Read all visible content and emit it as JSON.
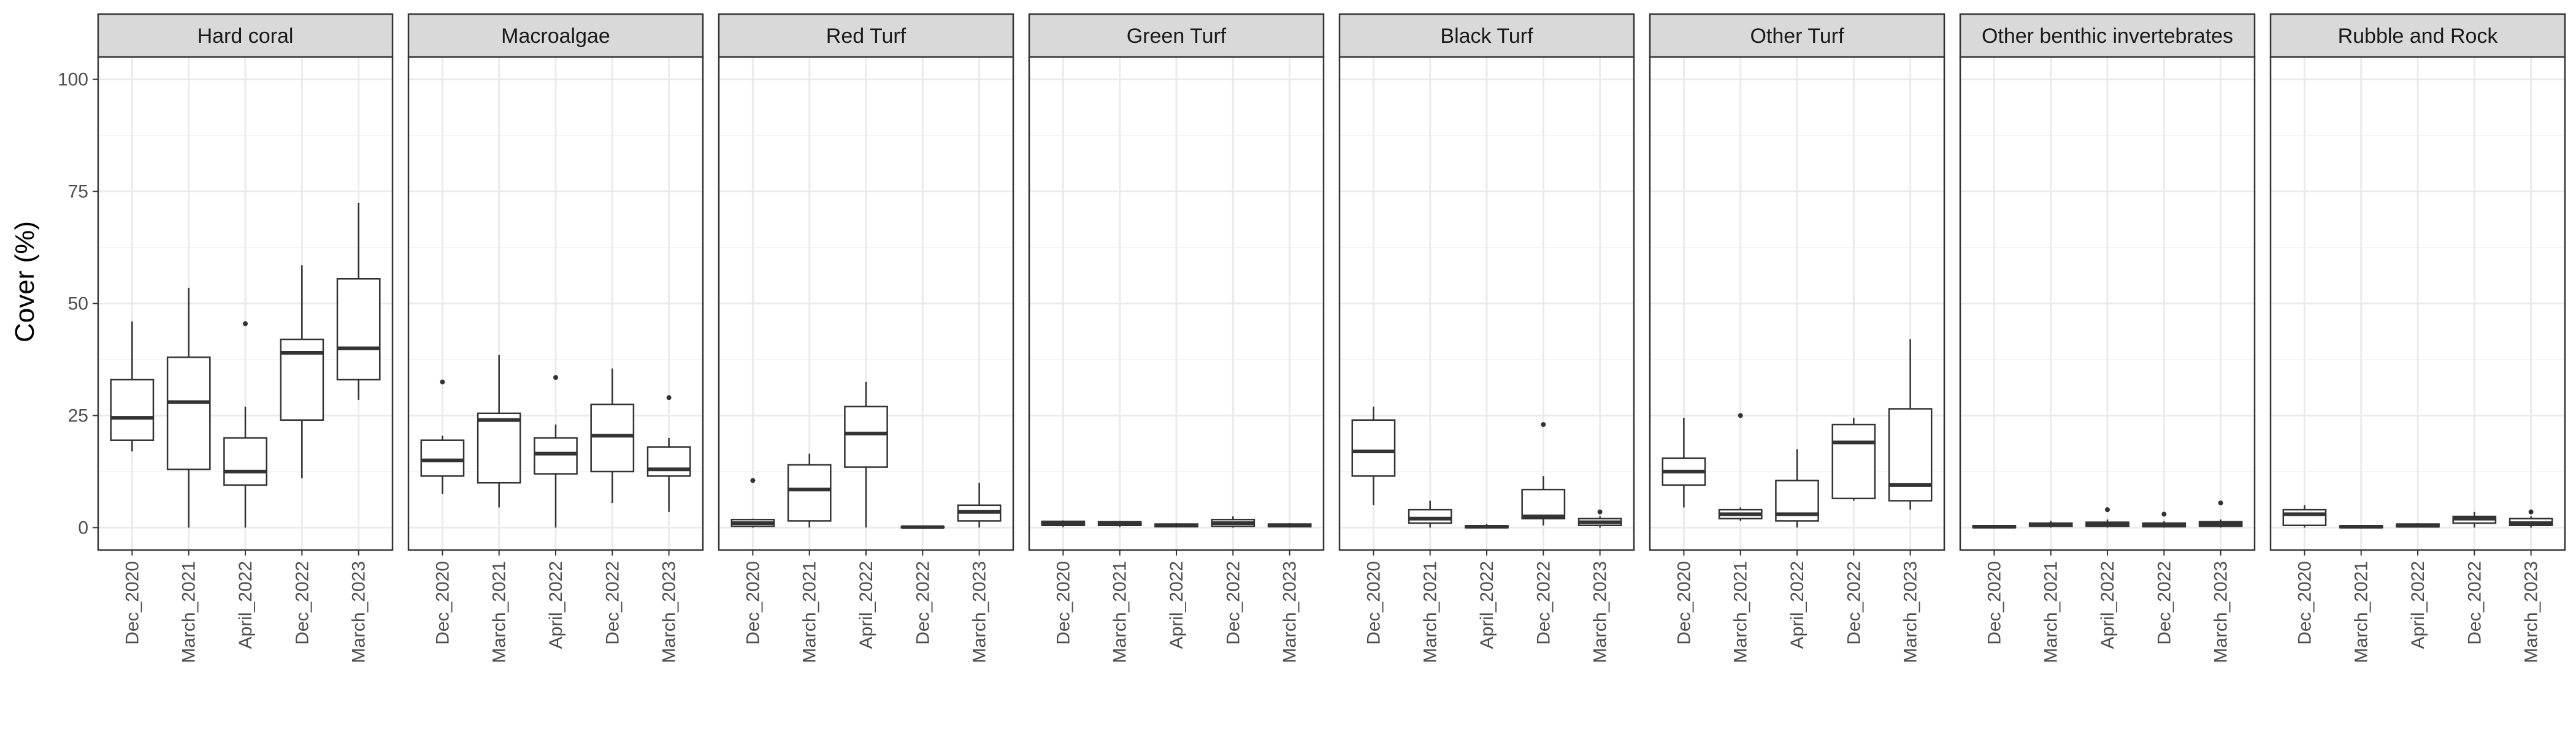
{
  "chart_data": {
    "type": "boxplot",
    "ylabel": "Cover (%)",
    "ylim": [
      0,
      100
    ],
    "y_ticks": [
      0,
      25,
      50,
      75,
      100
    ],
    "categories": [
      "Dec_2020",
      "March_2021",
      "April_2022",
      "Dec_2022",
      "March_2023"
    ],
    "grid": true,
    "facets": [
      {
        "label": "Hard coral",
        "boxes": [
          {
            "min": 17,
            "q1": 19.5,
            "median": 24.5,
            "q3": 33,
            "max": 46,
            "outliers": []
          },
          {
            "min": 0,
            "q1": 13,
            "median": 28,
            "q3": 38,
            "max": 53.5,
            "outliers": []
          },
          {
            "min": 0,
            "q1": 9.5,
            "median": 12.5,
            "q3": 20,
            "max": 27,
            "outliers": [
              45.5
            ]
          },
          {
            "min": 11,
            "q1": 24,
            "median": 39,
            "q3": 42,
            "max": 58.5,
            "outliers": []
          },
          {
            "min": 28.5,
            "q1": 33,
            "median": 40,
            "q3": 55.5,
            "max": 72.5,
            "outliers": []
          }
        ]
      },
      {
        "label": "Macroalgae",
        "boxes": [
          {
            "min": 7.5,
            "q1": 11.5,
            "median": 15,
            "q3": 19.5,
            "max": 20.5,
            "outliers": [
              32.5
            ]
          },
          {
            "min": 4.5,
            "q1": 10,
            "median": 24,
            "q3": 25.5,
            "max": 38.5,
            "outliers": []
          },
          {
            "min": 0,
            "q1": 12,
            "median": 16.5,
            "q3": 20,
            "max": 23,
            "outliers": [
              33.5
            ]
          },
          {
            "min": 5.5,
            "q1": 12.5,
            "median": 20.5,
            "q3": 27.5,
            "max": 35.5,
            "outliers": []
          },
          {
            "min": 3.5,
            "q1": 11.5,
            "median": 13,
            "q3": 18,
            "max": 20,
            "outliers": [
              29
            ]
          }
        ]
      },
      {
        "label": "Red Turf",
        "boxes": [
          {
            "min": 0,
            "q1": 0.3,
            "median": 1,
            "q3": 1.8,
            "max": 2,
            "outliers": [
              10.5
            ]
          },
          {
            "min": 0,
            "q1": 1.5,
            "median": 8.5,
            "q3": 14,
            "max": 16.5,
            "outliers": []
          },
          {
            "min": 0,
            "q1": 13.5,
            "median": 21,
            "q3": 27,
            "max": 32.5,
            "outliers": []
          },
          {
            "min": 0,
            "q1": 0,
            "median": 0.1,
            "q3": 0.2,
            "max": 0.3,
            "outliers": []
          },
          {
            "min": 0,
            "q1": 1.5,
            "median": 3.5,
            "q3": 5,
            "max": 10,
            "outliers": []
          }
        ]
      },
      {
        "label": "Green Turf",
        "boxes": [
          {
            "min": 0.1,
            "q1": 0.5,
            "median": 1,
            "q3": 1.4,
            "max": 1.6,
            "outliers": []
          },
          {
            "min": 0.1,
            "q1": 0.5,
            "median": 1,
            "q3": 1.3,
            "max": 1.5,
            "outliers": []
          },
          {
            "min": 0,
            "q1": 0.2,
            "median": 0.5,
            "q3": 0.8,
            "max": 1,
            "outliers": []
          },
          {
            "min": 0,
            "q1": 0.3,
            "median": 1,
            "q3": 1.8,
            "max": 2.5,
            "outliers": []
          },
          {
            "min": 0,
            "q1": 0.2,
            "median": 0.5,
            "q3": 0.8,
            "max": 1,
            "outliers": []
          }
        ]
      },
      {
        "label": "Black Turf",
        "boxes": [
          {
            "min": 5,
            "q1": 11.5,
            "median": 17,
            "q3": 24,
            "max": 27,
            "outliers": []
          },
          {
            "min": 0,
            "q1": 1,
            "median": 2,
            "q3": 4,
            "max": 6,
            "outliers": []
          },
          {
            "min": 0,
            "q1": 0,
            "median": 0.2,
            "q3": 0.4,
            "max": 0.8,
            "outliers": []
          },
          {
            "min": 0.5,
            "q1": 2,
            "median": 2.5,
            "q3": 8.5,
            "max": 11.5,
            "outliers": [
              23
            ]
          },
          {
            "min": 0,
            "q1": 0.5,
            "median": 1.2,
            "q3": 2,
            "max": 2.5,
            "outliers": [
              3.5
            ]
          }
        ]
      },
      {
        "label": "Other Turf",
        "boxes": [
          {
            "min": 4.5,
            "q1": 9.5,
            "median": 12.5,
            "q3": 15.5,
            "max": 24.5,
            "outliers": []
          },
          {
            "min": 1.5,
            "q1": 2,
            "median": 3,
            "q3": 4,
            "max": 4.5,
            "outliers": [
              25
            ]
          },
          {
            "min": 0,
            "q1": 1.5,
            "median": 3,
            "q3": 10.5,
            "max": 17.5,
            "outliers": []
          },
          {
            "min": 6,
            "q1": 6.5,
            "median": 19,
            "q3": 23,
            "max": 24.5,
            "outliers": []
          },
          {
            "min": 4,
            "q1": 6,
            "median": 9.5,
            "q3": 26.5,
            "max": 42,
            "outliers": []
          }
        ]
      },
      {
        "label": "Other benthic invertebrates",
        "boxes": [
          {
            "min": 0,
            "q1": 0,
            "median": 0.2,
            "q3": 0.4,
            "max": 0.5,
            "outliers": []
          },
          {
            "min": 0,
            "q1": 0.3,
            "median": 0.7,
            "q3": 1,
            "max": 1.5,
            "outliers": []
          },
          {
            "min": 0,
            "q1": 0.3,
            "median": 0.8,
            "q3": 1.2,
            "max": 1.8,
            "outliers": [
              4
            ]
          },
          {
            "min": 0,
            "q1": 0.2,
            "median": 0.6,
            "q3": 1,
            "max": 1.4,
            "outliers": [
              3
            ]
          },
          {
            "min": 0,
            "q1": 0.3,
            "median": 0.8,
            "q3": 1.3,
            "max": 1.8,
            "outliers": [
              5.5
            ]
          }
        ]
      },
      {
        "label": "Rubble and Rock",
        "boxes": [
          {
            "min": 0,
            "q1": 0.5,
            "median": 3,
            "q3": 4,
            "max": 5,
            "outliers": []
          },
          {
            "min": 0,
            "q1": 0,
            "median": 0.2,
            "q3": 0.4,
            "max": 0.6,
            "outliers": []
          },
          {
            "min": 0,
            "q1": 0.2,
            "median": 0.4,
            "q3": 0.8,
            "max": 1,
            "outliers": []
          },
          {
            "min": 0,
            "q1": 1,
            "median": 2,
            "q3": 2.5,
            "max": 3.5,
            "outliers": []
          },
          {
            "min": 0,
            "q1": 0.5,
            "median": 1,
            "q3": 2,
            "max": 2.5,
            "outliers": [
              3.5
            ]
          }
        ]
      }
    ]
  }
}
